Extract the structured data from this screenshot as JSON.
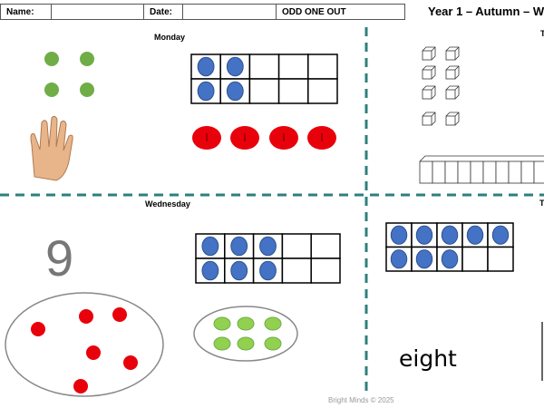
{
  "header": {
    "name_label": "Name:",
    "date_label": "Date:",
    "worksheet_title": "ODD ONE OUT",
    "unit_title": "Year 1 – Autumn – W"
  },
  "sections": {
    "monday": "Monday",
    "wednesday": "Wednesday",
    "right_top_label": "T",
    "right_bottom_label": "T"
  },
  "monday": {
    "green_dots": 4,
    "ten_frame_filled": 4,
    "red_counters": 4
  },
  "wednesday": {
    "numeral": "9",
    "ten_frame_filled": 6,
    "red_dots": 6,
    "green_dots": 6
  },
  "right_bottom": {
    "ten_frame_filled": 8,
    "word": "eight"
  },
  "footer": {
    "copyright": "Bright Minds © 2025"
  },
  "colors": {
    "divider": "#2f7f7f",
    "blue_dot": "#4472c4",
    "red": "#e8000b",
    "green": "#70ad47",
    "light_green": "#92d050"
  }
}
